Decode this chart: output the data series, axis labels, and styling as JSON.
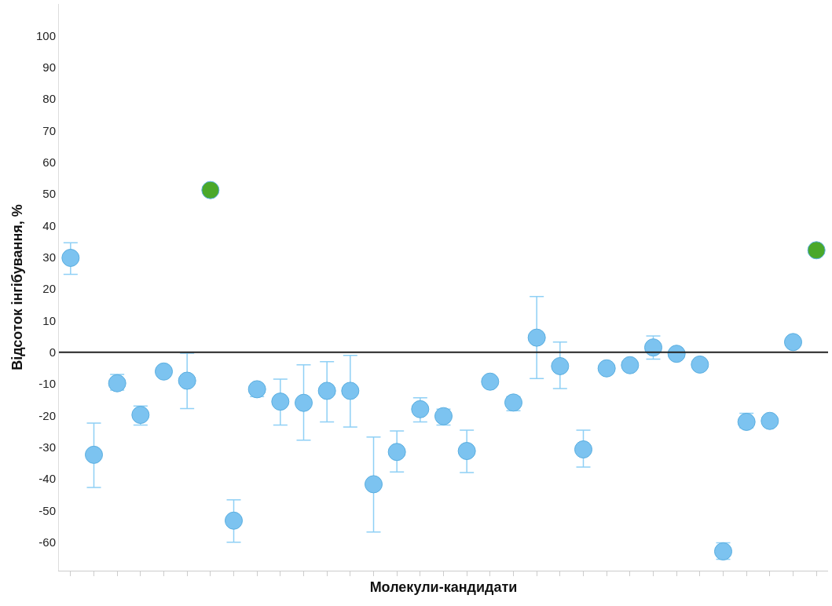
{
  "chart_data": {
    "type": "scatter",
    "xlabel": "Молекули-кандидати",
    "ylabel": "Відсоток інгібування, %",
    "categories": [
      null,
      null,
      null,
      null,
      null,
      null,
      null,
      null,
      null,
      null,
      null,
      null,
      null,
      null,
      null,
      null,
      null,
      null,
      null,
      null,
      null,
      null,
      null,
      null,
      null,
      null,
      null,
      null,
      null,
      null,
      null,
      null,
      null
    ],
    "values": [
      29.8,
      -32.4,
      -9.8,
      -19.8,
      -6.1,
      -9,
      51.2,
      -53.2,
      -11.7,
      -15.6,
      -16,
      -12.2,
      -12.2,
      -41.7,
      -31.5,
      -18,
      -20.2,
      -31.2,
      -9.3,
      -15.9,
      4.6,
      -4.4,
      -30.7,
      -5.1,
      -4.1,
      1.5,
      -0.5,
      -3.9,
      -62.9,
      -22,
      -21.7,
      3.2,
      32.2
    ],
    "errors": [
      [
        24.6,
        34.6
      ],
      [
        -42.7,
        -22.4
      ],
      [
        -12,
        -7
      ],
      [
        -23,
        -17
      ],
      null,
      [
        -17.8,
        -0.3
      ],
      null,
      [
        -60,
        -46.6
      ],
      [
        -14,
        -11.7
      ],
      [
        -23,
        -8.5
      ],
      [
        -27.8,
        -4
      ],
      [
        -22,
        -3
      ],
      [
        -23.6,
        -1
      ],
      [
        -56.8,
        -26.8
      ],
      [
        -37.8,
        -24.9
      ],
      [
        -22,
        -14.4
      ],
      [
        -23,
        -18
      ],
      [
        -38,
        -24.6
      ],
      null,
      [
        -18.5,
        -14
      ],
      [
        -8.3,
        17.6
      ],
      [
        -11.5,
        3.2
      ],
      [
        -36.3,
        -24.6
      ],
      null,
      null,
      [
        -2.2,
        5.1
      ],
      null,
      null,
      [
        -65.4,
        -60.2
      ],
      [
        -23.9,
        -19.3
      ],
      null,
      null,
      null
    ],
    "colors": [
      "#7cc3f0",
      "#7cc3f0",
      "#7cc3f0",
      "#7cc3f0",
      "#7cc3f0",
      "#7cc3f0",
      "#4aa82a",
      "#7cc3f0",
      "#7cc3f0",
      "#7cc3f0",
      "#7cc3f0",
      "#7cc3f0",
      "#7cc3f0",
      "#7cc3f0",
      "#7cc3f0",
      "#7cc3f0",
      "#7cc3f0",
      "#7cc3f0",
      "#7cc3f0",
      "#7cc3f0",
      "#7cc3f0",
      "#7cc3f0",
      "#7cc3f0",
      "#7cc3f0",
      "#7cc3f0",
      "#7cc3f0",
      "#7cc3f0",
      "#7cc3f0",
      "#7cc3f0",
      "#7cc3f0",
      "#7cc3f0",
      "#7cc3f0",
      "#4aa82a"
    ],
    "ylim": [
      -69,
      110
    ],
    "yticks": [
      -60,
      -50,
      -40,
      -30,
      -20,
      -10,
      0,
      10,
      20,
      30,
      40,
      50,
      60,
      70,
      80,
      90,
      100
    ],
    "ref_lines": [
      {
        "axis": "y",
        "value": 0,
        "color": "#222222"
      }
    ],
    "marker": "circle",
    "tick_labels": "y"
  }
}
